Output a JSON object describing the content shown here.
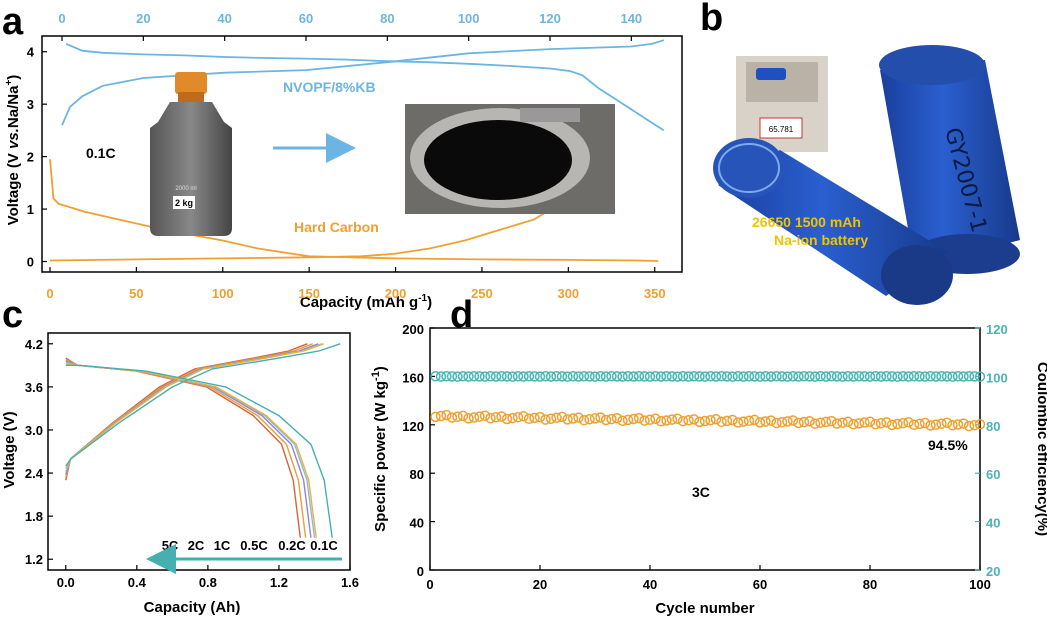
{
  "panels": {
    "a": "a",
    "b": "b",
    "c": "c",
    "d": "d"
  },
  "colors": {
    "blue": "#6bb5e3",
    "orange": "#f0a030",
    "teal": "#4db3b3",
    "tick_orange": "#f0a030",
    "tick_blue": "#6bb5e3",
    "cell_blue": "#1f4fb5",
    "cell_label": "#f2c200"
  },
  "photo_a": {
    "bottle_label": "2 kg",
    "bottle_mark": "2000 ml"
  },
  "photo_b": {
    "scale_reading": "65.781",
    "cell_text_line1": "26650  1500 mAh",
    "cell_text_line2": "Na-ion battery",
    "cell_handwriting": "GY2007-1"
  },
  "chart_data": [
    {
      "id": "a",
      "type": "line",
      "xlabel": "Capacity (mAh g-1)",
      "ylabel": "Voltage (V vs.Na/Na+)",
      "xlim": [
        0,
        360
      ],
      "ylim": [
        -0.2,
        4.3
      ],
      "xticks": [
        0,
        50,
        100,
        150,
        200,
        250,
        300,
        350
      ],
      "yticks": [
        0,
        1,
        2,
        3,
        4
      ],
      "top_xlim": [
        0,
        150
      ],
      "top_xticks": [
        0,
        20,
        40,
        60,
        80,
        100,
        120,
        140
      ],
      "annotations": [
        "NVOPF/8%KB",
        "0.1C",
        "Hard Carbon"
      ],
      "series": [
        {
          "name": "NVOPF/8%KB",
          "axis": "top",
          "color": "#6bb5e3",
          "curves": [
            {
              "x": [
                1,
                5,
                10,
                20,
                30,
                40,
                50,
                60,
                70,
                80,
                90,
                100,
                110,
                120,
                125,
                128,
                132,
                136,
                140,
                146,
                148
              ],
              "y": [
                4.15,
                4.02,
                3.98,
                3.95,
                3.93,
                3.9,
                3.88,
                3.87,
                3.85,
                3.82,
                3.8,
                3.77,
                3.73,
                3.68,
                3.63,
                3.55,
                3.3,
                3.1,
                2.9,
                2.6,
                2.5
              ]
            },
            {
              "x": [
                0,
                2,
                5,
                10,
                20,
                40,
                60,
                80,
                100,
                120,
                140,
                145,
                148
              ],
              "y": [
                2.6,
                2.95,
                3.15,
                3.35,
                3.5,
                3.6,
                3.65,
                3.8,
                3.97,
                4.05,
                4.1,
                4.15,
                4.22
              ]
            }
          ]
        },
        {
          "name": "Hard Carbon",
          "axis": "bottom",
          "color": "#f0a030",
          "curves": [
            {
              "x": [
                0,
                2,
                5,
                10,
                20,
                40,
                60,
                80,
                100,
                120,
                150,
                200,
                250,
                300,
                340,
                352
              ],
              "y": [
                1.95,
                1.2,
                1.1,
                1.05,
                0.95,
                0.8,
                0.65,
                0.52,
                0.4,
                0.25,
                0.1,
                0.06,
                0.04,
                0.03,
                0.02,
                0.01
              ]
            },
            {
              "x": [
                0,
                50,
                100,
                150,
                180,
                200,
                220,
                240,
                260,
                280,
                290,
                296,
                300
              ],
              "y": [
                0.02,
                0.04,
                0.06,
                0.08,
                0.1,
                0.15,
                0.25,
                0.4,
                0.6,
                0.8,
                1.0,
                1.3,
                1.9
              ]
            }
          ]
        }
      ]
    },
    {
      "id": "c",
      "type": "line",
      "xlabel": "Capacity (Ah)",
      "ylabel": "Voltage (V)",
      "xlim": [
        -0.1,
        1.6
      ],
      "ylim": [
        1.05,
        4.35
      ],
      "xticks": [
        0.0,
        0.4,
        0.8,
        1.2,
        1.6
      ],
      "yticks": [
        1.2,
        1.8,
        2.4,
        3.0,
        3.6,
        4.2
      ],
      "rate_labels": [
        "5C",
        "2C",
        "1C",
        "0.5C",
        "0.2C",
        "0.1C"
      ],
      "series": [
        {
          "name": "5C",
          "color": "#d9623b",
          "capacity": 1.32
        },
        {
          "name": "2C",
          "color": "#e3a13a",
          "capacity": 1.35
        },
        {
          "name": "1C",
          "color": "#9b7fd4",
          "capacity": 1.38
        },
        {
          "name": "0.5C",
          "color": "#7ec0e8",
          "capacity": 1.4
        },
        {
          "name": "0.2C",
          "color": "#e8b23a",
          "capacity": 1.41
        },
        {
          "name": "0.1C",
          "color": "#46b0b0",
          "capacity": 1.5
        }
      ]
    },
    {
      "id": "d",
      "type": "scatter",
      "xlabel": "Cycle number",
      "ylabel": "Specific power (W kg-1)",
      "y2label": "Coulombic efficiency(%)",
      "xlim": [
        0,
        100
      ],
      "ylim": [
        0,
        200
      ],
      "y2lim": [
        20,
        120
      ],
      "xticks": [
        0,
        20,
        40,
        60,
        80,
        100
      ],
      "yticks": [
        0,
        40,
        80,
        120,
        160,
        200
      ],
      "y2ticks": [
        20,
        40,
        60,
        80,
        100,
        120
      ],
      "annotations": [
        "3C",
        "94.5%"
      ],
      "series": [
        {
          "name": "Specific power",
          "axis": "left",
          "color": "#f0a030",
          "start": 127,
          "end": 120
        },
        {
          "name": "Coulombic efficiency",
          "axis": "right",
          "color": "#4db3b3",
          "value": 100
        }
      ]
    }
  ]
}
